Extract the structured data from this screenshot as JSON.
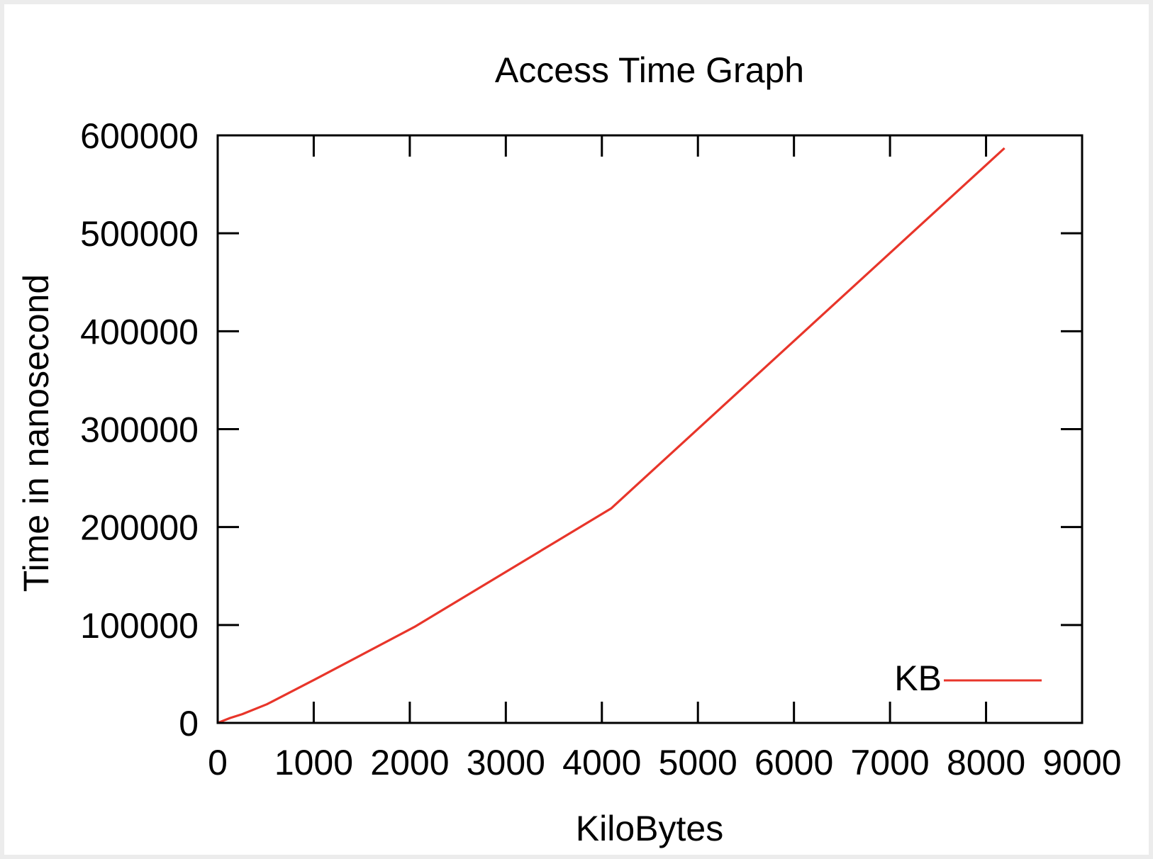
{
  "chart_data": {
    "type": "line",
    "title": "Access Time Graph",
    "xlabel": "KiloBytes",
    "ylabel": "Time in nanosecond",
    "xlim": [
      0,
      9000
    ],
    "ylim": [
      0,
      600000
    ],
    "xticks": [
      0,
      1000,
      2000,
      3000,
      4000,
      5000,
      6000,
      7000,
      8000,
      9000
    ],
    "yticks": [
      0,
      100000,
      200000,
      300000,
      400000,
      500000,
      600000
    ],
    "xtick_labels": [
      "0",
      "1000",
      "2000",
      "3000",
      "4000",
      "5000",
      "6000",
      "7000",
      "8000",
      "9000"
    ],
    "ytick_labels": [
      "0",
      "100000",
      "200000",
      "300000",
      "400000",
      "500000",
      "600000"
    ],
    "grid": false,
    "legend_position": "bottom-right",
    "series": [
      {
        "name": "KB",
        "color": "#e8352a",
        "x": [
          0,
          128,
          256,
          512,
          1024,
          2048,
          4096,
          8192
        ],
        "y": [
          0,
          5000,
          9000,
          19000,
          45000,
          98000,
          219000,
          587000
        ]
      }
    ]
  }
}
